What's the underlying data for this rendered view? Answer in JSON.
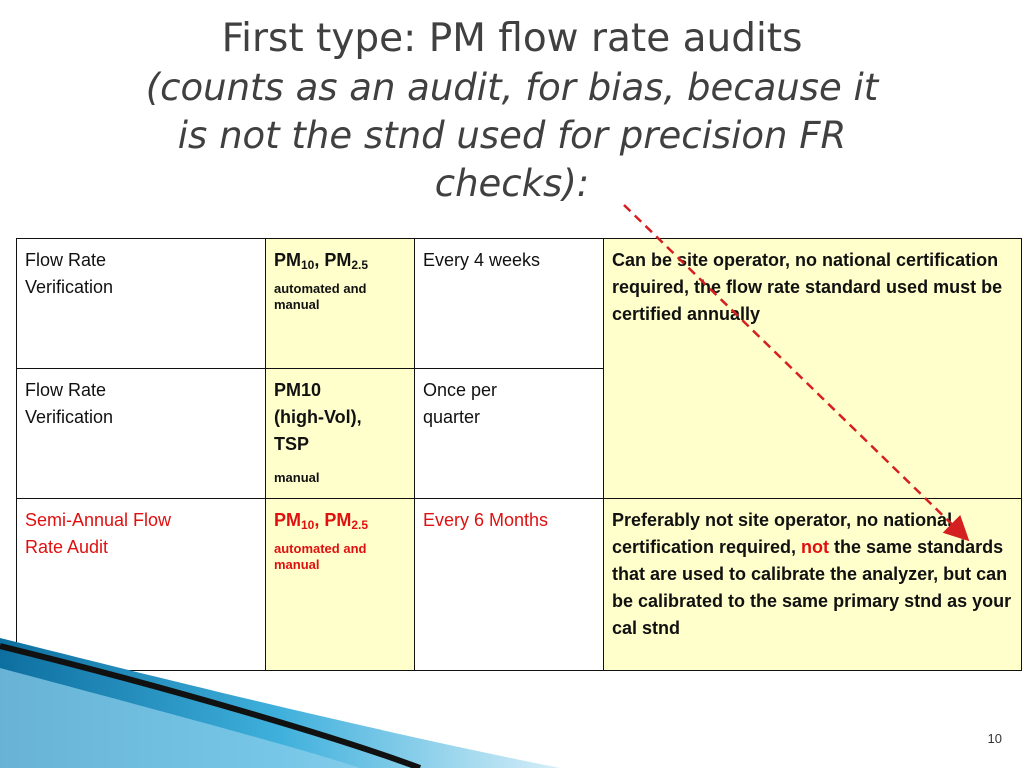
{
  "title": {
    "main": "First type: PM flow rate audits",
    "sub_line1": "(counts as an audit, for bias, because it",
    "sub_line2": "is not the stnd used for precision FR",
    "sub_line3": "checks):"
  },
  "table": {
    "rows": [
      {
        "col1_line1": "Flow Rate",
        "col1_line2": "Verification",
        "pm_a": "PM",
        "pm_a_sub": "10",
        "pm_sep": ", ",
        "pm_b": "PM",
        "pm_b_sub": "2.5",
        "mode": "automated and manual",
        "frequency": "Every 4 weeks",
        "note": "Can be site operator, no national certification required, the flow rate standard used must be certified annually"
      },
      {
        "col1_line1": "Flow Rate",
        "col1_line2": "Verification",
        "pm_line1": "PM10",
        "pm_line2": "(high-Vol),",
        "pm_line3": "TSP",
        "mode": "manual",
        "frequency_line1": "Once per",
        "frequency_line2": "quarter"
      },
      {
        "col1_line1": "Semi-Annual Flow",
        "col1_line2": "Rate Audit",
        "pm_a": "PM",
        "pm_a_sub": "10",
        "pm_sep": ", ",
        "pm_b": "PM",
        "pm_b_sub": "2.5",
        "mode": "automated and manual",
        "frequency": "Every 6 Months",
        "note_part1": "Preferably not site operator, no national certification required, ",
        "note_highlight": "not",
        "note_part2": " the same standards that are used to calibrate the analyzer, but can be calibrated to the same primary stnd as your cal stnd"
      }
    ]
  },
  "slide_number": "10",
  "colors": {
    "title": "#404040",
    "cell_highlight": "#ffffcc",
    "accent_red": "#e01010",
    "wave_blue": "#1a8fc0"
  }
}
